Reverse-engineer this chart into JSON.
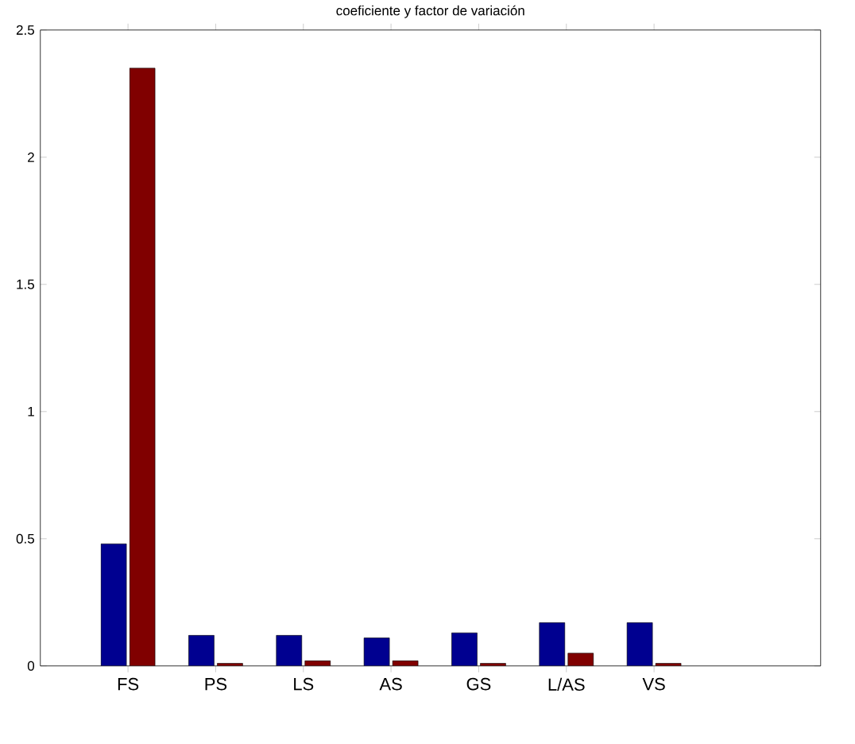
{
  "chart_data": {
    "type": "bar",
    "title": "coeficiente y factor de variación",
    "categories": [
      "FS",
      "PS",
      "LS",
      "AS",
      "GS",
      "L/AS",
      "VS"
    ],
    "series": [
      {
        "color": "#000090",
        "values": [
          0.48,
          0.12,
          0.12,
          0.11,
          0.13,
          0.17,
          0.17
        ]
      },
      {
        "color": "#800000",
        "values": [
          2.35,
          0.01,
          0.02,
          0.02,
          0.01,
          0.05,
          0.01
        ]
      }
    ],
    "ylim": [
      0,
      2.5
    ],
    "yticks": [
      0,
      0.5,
      1,
      1.5,
      2,
      2.5
    ]
  }
}
